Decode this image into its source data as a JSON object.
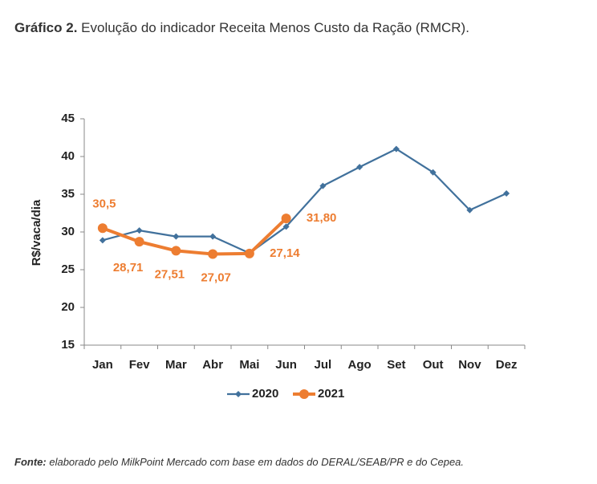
{
  "chart_data": {
    "type": "line",
    "title_prefix": "Gráfico 2.",
    "title": "Evolução do indicador Receita Menos Custo da Ração (RMCR).",
    "ylabel": "R$/vaca/dia",
    "categories": [
      "Jan",
      "Fev",
      "Mar",
      "Abr",
      "Mai",
      "Jun",
      "Jul",
      "Ago",
      "Set",
      "Out",
      "Nov",
      "Dez"
    ],
    "series": [
      {
        "name": "2020",
        "color": "#41719c",
        "marker": "diamond",
        "values": [
          28.9,
          30.2,
          29.4,
          29.4,
          27.2,
          30.7,
          36.1,
          38.6,
          41.0,
          37.9,
          32.9,
          35.1
        ]
      },
      {
        "name": "2021",
        "color": "#ed7d31",
        "marker": "circle",
        "values": [
          30.5,
          28.71,
          27.51,
          27.07,
          27.14,
          31.8,
          null,
          null,
          null,
          null,
          null,
          null
        ],
        "value_labels": [
          "30,5",
          "28,71",
          "27,51",
          "27,07",
          "27,14",
          "31,80",
          null,
          null,
          null,
          null,
          null,
          null
        ]
      }
    ],
    "ylim": [
      15,
      45
    ],
    "yticks": [
      15,
      20,
      25,
      30,
      35,
      40,
      45
    ],
    "grid": false,
    "legend": "bottom",
    "source_label": "Fonte:",
    "source": "elaborado pelo MilkPoint Mercado com base em dados do DERAL/SEAB/PR e do Cepea."
  }
}
